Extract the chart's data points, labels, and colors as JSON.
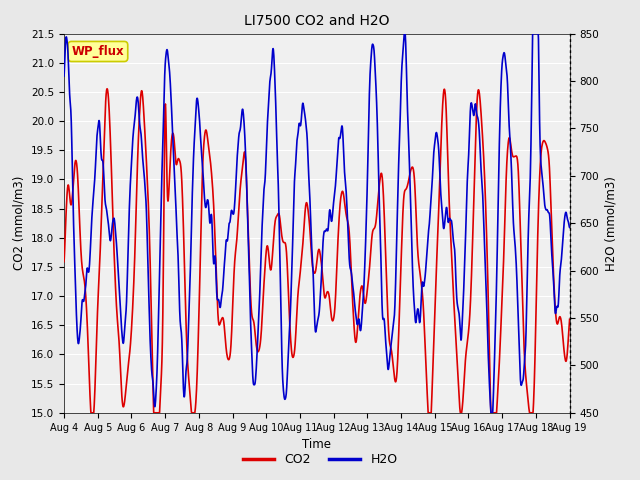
{
  "title": "LI7500 CO2 and H2O",
  "xlabel": "Time",
  "ylabel_left": "CO2 (mmol/m3)",
  "ylabel_right": "H2O (mmol/m3)",
  "ylim_left": [
    15.0,
    21.5
  ],
  "ylim_right": [
    450,
    850
  ],
  "yticks_left": [
    15.0,
    15.5,
    16.0,
    16.5,
    17.0,
    17.5,
    18.0,
    18.5,
    19.0,
    19.5,
    20.0,
    20.5,
    21.0,
    21.5
  ],
  "yticks_right": [
    450,
    500,
    550,
    600,
    650,
    700,
    750,
    800,
    850
  ],
  "xtick_labels": [
    "Aug 4",
    "Aug 5",
    "Aug 6",
    "Aug 7",
    "Aug 8",
    "Aug 9",
    "Aug 10",
    "Aug 11",
    "Aug 12",
    "Aug 13",
    "Aug 14",
    "Aug 15",
    "Aug 16",
    "Aug 17",
    "Aug 18",
    "Aug 19"
  ],
  "co2_color": "#dd0000",
  "h2o_color": "#0000cc",
  "bg_color": "#e8e8e8",
  "plot_bg_color": "#f0f0f0",
  "annotation_text": "WP_flux",
  "annotation_bg": "#ffff99",
  "annotation_border": "#cccc00",
  "annotation_text_color": "#cc0000",
  "legend_co2": "CO2",
  "legend_h2o": "H2O",
  "line_width": 1.2,
  "n_points": 2160,
  "days": 15
}
